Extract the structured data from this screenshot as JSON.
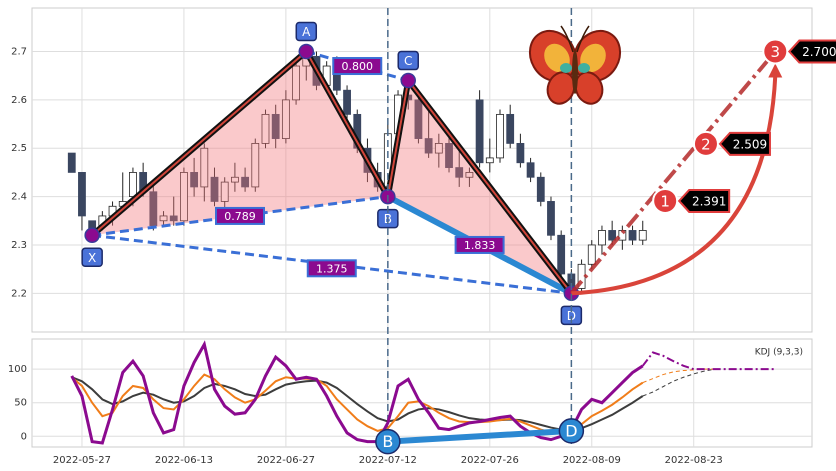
{
  "chart_data": [
    {
      "type": "candlestick",
      "x": [
        -1,
        0,
        1,
        2,
        3,
        4,
        5,
        6,
        7,
        8,
        9,
        10,
        11,
        12,
        13,
        14,
        15,
        16,
        17,
        18,
        19,
        20,
        21,
        22,
        23,
        24,
        25,
        26,
        27,
        28,
        29,
        30,
        31,
        32,
        33,
        34,
        35,
        36,
        37,
        38,
        39,
        40,
        41,
        42,
        43,
        44,
        45,
        46,
        47,
        48,
        49,
        50,
        51,
        52,
        53,
        54,
        55
      ],
      "open": [
        2.49,
        2.45,
        2.35,
        2.34,
        2.36,
        2.38,
        2.4,
        2.45,
        2.41,
        2.35,
        2.36,
        2.35,
        2.45,
        2.42,
        2.44,
        2.39,
        2.43,
        2.44,
        2.42,
        2.51,
        2.57,
        2.52,
        2.6,
        2.67,
        2.69,
        2.63,
        2.67,
        2.62,
        2.57,
        2.5,
        2.45,
        2.42,
        2.53,
        2.61,
        2.6,
        2.52,
        2.49,
        2.51,
        2.46,
        2.44,
        2.6,
        2.47,
        2.48,
        2.57,
        2.51,
        2.47,
        2.44,
        2.39,
        2.32,
        2.24,
        2.21,
        2.26,
        2.3,
        2.33,
        2.31,
        2.33,
        2.31
      ],
      "high": [
        2.49,
        2.45,
        2.35,
        2.37,
        2.39,
        2.45,
        2.46,
        2.47,
        2.43,
        2.37,
        2.4,
        2.46,
        2.48,
        2.51,
        2.46,
        2.44,
        2.47,
        2.46,
        2.52,
        2.58,
        2.59,
        2.62,
        2.68,
        2.7,
        2.7,
        2.68,
        2.69,
        2.63,
        2.58,
        2.52,
        2.47,
        2.55,
        2.62,
        2.65,
        2.62,
        2.58,
        2.53,
        2.53,
        2.5,
        2.46,
        2.62,
        2.52,
        2.58,
        2.59,
        2.53,
        2.48,
        2.45,
        2.4,
        2.33,
        2.25,
        2.27,
        2.31,
        2.34,
        2.35,
        2.34,
        2.34,
        2.35
      ],
      "low": [
        2.45,
        2.33,
        2.32,
        2.33,
        2.34,
        2.37,
        2.38,
        2.4,
        2.33,
        2.34,
        2.34,
        2.34,
        2.4,
        2.39,
        2.38,
        2.37,
        2.41,
        2.41,
        2.41,
        2.5,
        2.5,
        2.51,
        2.59,
        2.64,
        2.62,
        2.62,
        2.61,
        2.55,
        2.49,
        2.43,
        2.41,
        2.4,
        2.52,
        2.58,
        2.51,
        2.48,
        2.46,
        2.45,
        2.42,
        2.42,
        2.46,
        2.45,
        2.47,
        2.5,
        2.46,
        2.43,
        2.38,
        2.31,
        2.23,
        2.2,
        2.2,
        2.25,
        2.28,
        2.3,
        2.29,
        2.3,
        2.3
      ],
      "close": [
        2.45,
        2.36,
        2.33,
        2.36,
        2.38,
        2.39,
        2.45,
        2.41,
        2.34,
        2.36,
        2.35,
        2.45,
        2.42,
        2.5,
        2.39,
        2.43,
        2.44,
        2.42,
        2.51,
        2.57,
        2.52,
        2.6,
        2.67,
        2.69,
        2.63,
        2.67,
        2.62,
        2.57,
        2.5,
        2.45,
        2.42,
        2.53,
        2.61,
        2.6,
        2.52,
        2.49,
        2.51,
        2.46,
        2.44,
        2.45,
        2.47,
        2.48,
        2.57,
        2.51,
        2.47,
        2.44,
        2.39,
        2.32,
        2.24,
        2.21,
        2.26,
        2.3,
        2.33,
        2.31,
        2.33,
        2.31,
        2.33
      ],
      "up_color": "#ffffff",
      "down_color": "#3a4660",
      "xlim": [
        -4.9,
        71.6
      ],
      "ylim": [
        2.12,
        2.79
      ],
      "yticks": [
        2.2,
        2.3,
        2.4,
        2.5,
        2.6,
        2.7
      ],
      "xticks": [
        0,
        10,
        20,
        30,
        40,
        50,
        60
      ],
      "grid": true,
      "pattern": {
        "labels": [
          "X",
          "A",
          "B",
          "C",
          "D"
        ],
        "x": [
          1,
          22,
          30,
          32,
          48
        ],
        "values": [
          2.32,
          2.7,
          2.4,
          2.64,
          2.2
        ],
        "ratios": [
          {
            "value": 0.789,
            "label": "0.789"
          },
          {
            "value": 0.8,
            "label": "0.800"
          },
          {
            "value": 1.833,
            "label": "1.833"
          },
          {
            "value": 1.375,
            "label": "1.375"
          }
        ]
      },
      "targets": {
        "labels": [
          "1",
          "2",
          "3"
        ],
        "x": [
          57.2,
          61.2,
          68
        ],
        "values": [
          2.391,
          2.509,
          2.7
        ],
        "value_labels": [
          "2.391",
          "2.509",
          "2.700"
        ]
      }
    },
    {
      "type": "line",
      "title": "KDJ (9,3,3)",
      "x": [
        -1,
        0,
        1,
        2,
        3,
        4,
        5,
        6,
        7,
        8,
        9,
        10,
        11,
        12,
        13,
        14,
        15,
        16,
        17,
        18,
        19,
        20,
        21,
        22,
        23,
        24,
        25,
        26,
        27,
        28,
        29,
        30,
        31,
        32,
        33,
        34,
        35,
        36,
        37,
        38,
        39,
        40,
        41,
        42,
        43,
        44,
        45,
        46,
        47,
        48,
        49,
        50,
        51,
        52,
        53,
        54,
        55
      ],
      "series": [
        {
          "color": "#3d3d3d",
          "values": [
            88,
            82,
            70,
            55,
            48,
            52,
            60,
            65,
            62,
            55,
            50,
            52,
            60,
            72,
            78,
            75,
            70,
            63,
            60,
            62,
            70,
            77,
            80,
            82,
            83,
            80,
            72,
            60,
            48,
            37,
            27,
            22,
            25,
            34,
            40,
            42,
            40,
            36,
            31,
            27,
            25,
            24,
            24,
            25,
            24,
            21,
            17,
            13,
            10,
            9,
            12,
            18,
            25,
            32,
            41,
            50,
            60
          ]
        },
        {
          "color": "#f07d1a",
          "values": [
            88,
            75,
            50,
            30,
            35,
            60,
            75,
            72,
            55,
            42,
            40,
            55,
            75,
            92,
            85,
            70,
            58,
            50,
            55,
            68,
            82,
            88,
            86,
            86,
            85,
            75,
            55,
            40,
            25,
            15,
            8,
            12,
            30,
            50,
            52,
            45,
            35,
            27,
            22,
            21,
            21,
            22,
            24,
            26,
            22,
            16,
            10,
            6,
            5,
            8,
            18,
            30,
            38,
            47,
            58,
            70,
            80
          ]
        },
        {
          "color": "#8b0a8f",
          "values": [
            90,
            60,
            -8,
            -10,
            40,
            95,
            112,
            90,
            35,
            5,
            10,
            75,
            110,
            137,
            70,
            45,
            33,
            35,
            55,
            90,
            118,
            105,
            85,
            88,
            85,
            60,
            30,
            5,
            -5,
            -8,
            -8,
            20,
            75,
            85,
            55,
            35,
            12,
            10,
            15,
            20,
            22,
            25,
            28,
            30,
            15,
            5,
            -2,
            -5,
            0,
            10,
            40,
            55,
            50,
            65,
            80,
            95,
            105
          ]
        }
      ],
      "projection": [
        {
          "color": "#3d3d3d",
          "x": [
            55,
            56,
            57,
            58,
            59,
            60,
            61,
            62
          ],
          "values": [
            60,
            66,
            74,
            82,
            88,
            93,
            97,
            100
          ]
        },
        {
          "color": "#f07d1a",
          "x": [
            55,
            56,
            57,
            58,
            59,
            60,
            61,
            62
          ],
          "values": [
            80,
            86,
            92,
            96,
            98,
            99,
            100,
            100
          ]
        },
        {
          "color": "#8b0a8f",
          "x": [
            55,
            56,
            57,
            58,
            59,
            60,
            61,
            62,
            63,
            64,
            65,
            66,
            67,
            68
          ],
          "values": [
            105,
            125,
            120,
            112,
            105,
            100,
            100,
            100,
            100,
            100,
            100,
            100,
            100,
            100
          ]
        }
      ],
      "divergence": {
        "labels": [
          "B",
          "D"
        ],
        "x": [
          30,
          48
        ],
        "values": [
          -8,
          8
        ]
      },
      "xlim": [
        -4.9,
        71.6
      ],
      "ylim": [
        -16,
        145
      ],
      "yticks": [
        0,
        50,
        100
      ],
      "xticks": [
        {
          "value": 0,
          "label": "2022-05-27"
        },
        {
          "value": 10,
          "label": "2022-06-13"
        },
        {
          "value": 20,
          "label": "2022-06-27"
        },
        {
          "value": 30,
          "label": "2022-07-12"
        },
        {
          "value": 40,
          "label": "2022-07-26"
        },
        {
          "value": 50,
          "label": "2022-08-09"
        },
        {
          "value": 60,
          "label": "2022-08-23"
        }
      ],
      "grid": true
    }
  ]
}
